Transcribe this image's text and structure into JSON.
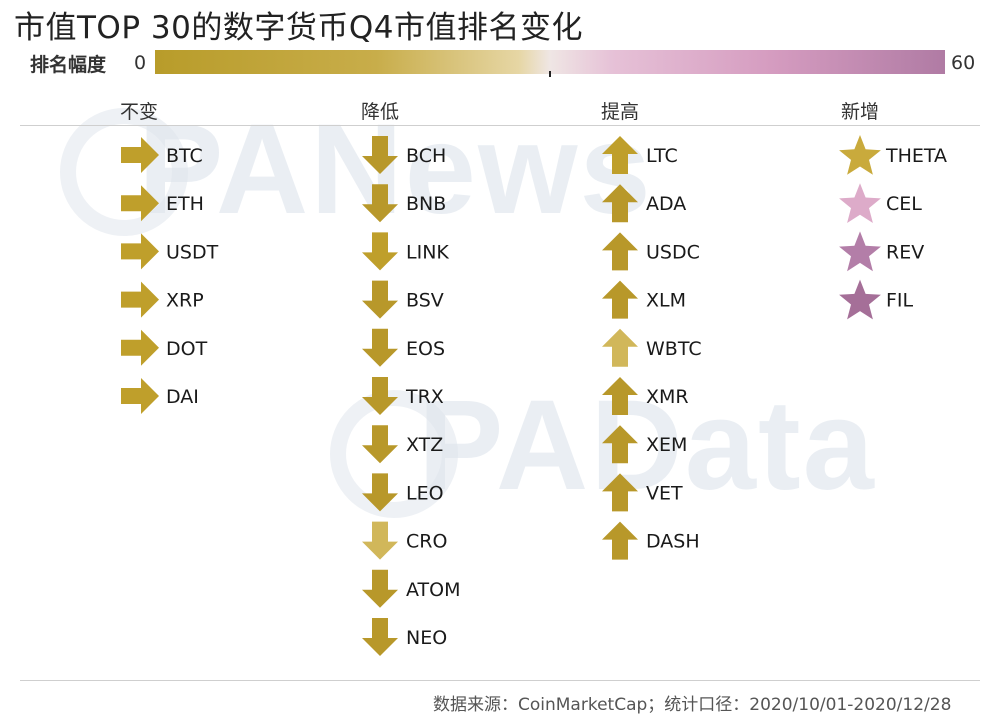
{
  "title": "市值TOP 30的数字货币Q4市值排名变化",
  "legend": {
    "label": "排名幅度",
    "min_label": "0",
    "max_label": "60",
    "min_value": 0,
    "max_value": 60,
    "color_low": "#b89c2a",
    "color_mid": "#efe6e4",
    "color_high": "#b07ba4"
  },
  "watermarks": [
    "PANews",
    "PAData"
  ],
  "source": "数据来源：CoinMarketCap；统计口径：2020/10/01-2020/12/28",
  "chart_data": {
    "type": "table",
    "columns": [
      {
        "header": "不变",
        "icon": "arrow-right-icon",
        "items": [
          {
            "name": "BTC",
            "color": "#bf9f2b"
          },
          {
            "name": "ETH",
            "color": "#bf9f2b"
          },
          {
            "name": "USDT",
            "color": "#bf9f2b"
          },
          {
            "name": "XRP",
            "color": "#bf9f2b"
          },
          {
            "name": "DOT",
            "color": "#bf9f2b"
          },
          {
            "name": "DAI",
            "color": "#bf9f2b"
          }
        ]
      },
      {
        "header": "降低",
        "icon": "arrow-down-icon",
        "items": [
          {
            "name": "BCH",
            "color": "#b8982a"
          },
          {
            "name": "BNB",
            "color": "#b8982a"
          },
          {
            "name": "LINK",
            "color": "#bf9f2b"
          },
          {
            "name": "BSV",
            "color": "#b8982a"
          },
          {
            "name": "EOS",
            "color": "#b8982a"
          },
          {
            "name": "TRX",
            "color": "#b8982a"
          },
          {
            "name": "XTZ",
            "color": "#b8982a"
          },
          {
            "name": "LEO",
            "color": "#b8982a"
          },
          {
            "name": "CRO",
            "color": "#d1b75a"
          },
          {
            "name": "ATOM",
            "color": "#b8982a"
          },
          {
            "name": "NEO",
            "color": "#b8982a"
          }
        ]
      },
      {
        "header": "提高",
        "icon": "arrow-up-icon",
        "items": [
          {
            "name": "LTC",
            "color": "#bf9f2b"
          },
          {
            "name": "ADA",
            "color": "#b8982a"
          },
          {
            "name": "USDC",
            "color": "#b8982a"
          },
          {
            "name": "XLM",
            "color": "#b8982a"
          },
          {
            "name": "WBTC",
            "color": "#d1b75a"
          },
          {
            "name": "XMR",
            "color": "#b8982a"
          },
          {
            "name": "XEM",
            "color": "#b8982a"
          },
          {
            "name": "VET",
            "color": "#b8982a"
          },
          {
            "name": "DASH",
            "color": "#b8982a"
          }
        ]
      },
      {
        "header": "新增",
        "icon": "star-icon",
        "items": [
          {
            "name": "THETA",
            "color": "#c9aa3c"
          },
          {
            "name": "CEL",
            "color": "#ddabc9"
          },
          {
            "name": "REV",
            "color": "#b37ea8"
          },
          {
            "name": "FIL",
            "color": "#a56f98"
          }
        ]
      }
    ]
  }
}
